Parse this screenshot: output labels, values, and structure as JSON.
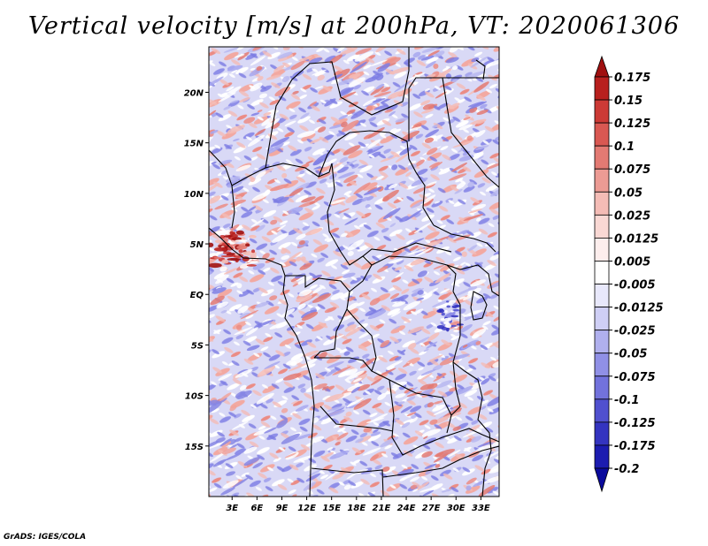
{
  "title": "Vertical velocity [m/s] at 200hPa, VT: 2020061306",
  "credit": "GrADS: IGES/COLA",
  "map": {
    "lat_ticks": [
      "20N",
      "15N",
      "10N",
      "5N",
      "EQ",
      "5S",
      "10S",
      "15S"
    ],
    "lon_ticks": [
      "3E",
      "6E",
      "9E",
      "12E",
      "15E",
      "18E",
      "21E",
      "24E",
      "27E",
      "30E",
      "33E"
    ],
    "lat_values": [
      20,
      15,
      10,
      5,
      0,
      -5,
      -10,
      -15
    ],
    "lon_values": [
      3,
      6,
      9,
      12,
      15,
      18,
      21,
      24,
      27,
      30,
      33
    ],
    "lat_range": [
      -20,
      24.5
    ],
    "lon_range": [
      0.2,
      35.2
    ]
  },
  "colorbar": {
    "labels": [
      "0.175",
      "0.15",
      "0.125",
      "0.1",
      "0.075",
      "0.05",
      "0.025",
      "0.0125",
      "0.005",
      "-0.005",
      "-0.0125",
      "-0.025",
      "-0.05",
      "-0.075",
      "-0.1",
      "-0.125",
      "-0.175",
      "-0.2"
    ],
    "colors": [
      "#a01010",
      "#b8201e",
      "#cc3a36",
      "#d95852",
      "#e37a73",
      "#ec9b94",
      "#f4bcb6",
      "#f9d8d4",
      "#fdeeed",
      "#ffffff",
      "#e8e8fb",
      "#cfcff5",
      "#b0b0ee",
      "#9090e6",
      "#7272dc",
      "#5050cf",
      "#3434c0",
      "#1c1cb0",
      "#0a0a9c"
    ]
  },
  "colors": {
    "positive": "#e37a73",
    "negative": "#8e8ee8",
    "neutral": "#ffffff"
  }
}
